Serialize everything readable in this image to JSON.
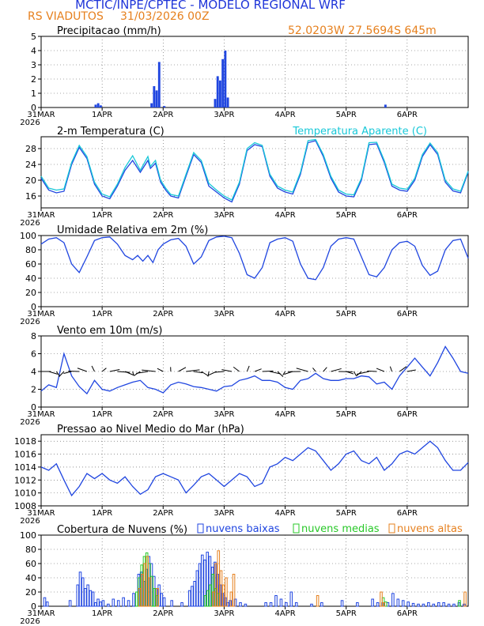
{
  "header": {
    "title": "MCTIC/INPE/CPTEC - MODELO REGIONAL WRF",
    "location": "RS VIADUTOS",
    "run": "31/03/2026 00Z",
    "coords": "52.0203W 27.5694S 645m",
    "title_color": "#1f35d9",
    "accent_color": "#e6801e"
  },
  "x_axis": {
    "ticks": [
      "31MAR",
      "1APR",
      "2APR",
      "3APR",
      "4APR",
      "5APR",
      "6APR"
    ],
    "year": "2026",
    "hours_total": 168
  },
  "chart_data": [
    {
      "type": "bar",
      "title": "Precipitacao (mm/h)",
      "ylim": [
        0,
        5
      ],
      "yticks": [
        "0",
        "1",
        "2",
        "3",
        "4",
        "5"
      ],
      "color": "#2046e0",
      "hours": [
        21,
        22,
        23,
        43,
        44,
        45,
        46,
        48,
        68,
        69,
        70,
        71,
        72,
        73,
        135
      ],
      "values": [
        0.2,
        0.3,
        0.15,
        0.3,
        1.5,
        1.2,
        3.2,
        0.1,
        0.6,
        2.2,
        1.9,
        3.4,
        4.0,
        0.7,
        0.2
      ]
    },
    {
      "type": "line",
      "title": "2-m Temperatura (C)",
      "title2": "Temperatura Aparente (C)",
      "ylim": [
        13,
        31
      ],
      "yticks": [
        "16",
        "20",
        "24",
        "28"
      ],
      "ytick_values": [
        16,
        20,
        24,
        28
      ],
      "series": [
        {
          "name": "Temperatura",
          "color": "#2046e0",
          "hours": [
            0,
            3,
            6,
            9,
            12,
            15,
            18,
            21,
            24,
            27,
            30,
            33,
            36,
            39,
            42,
            43,
            45,
            47,
            49,
            51,
            54,
            57,
            60,
            63,
            66,
            69,
            72,
            75,
            78,
            81,
            84,
            87,
            90,
            93,
            96,
            99,
            102,
            105,
            108,
            111,
            114,
            117,
            120,
            123,
            126,
            129,
            132,
            135,
            138,
            141,
            144,
            147,
            150,
            153,
            156,
            159,
            162,
            165,
            168
          ],
          "values": [
            20.5,
            17.5,
            16.8,
            17.2,
            24.0,
            28.3,
            25.5,
            19.0,
            16.0,
            15.3,
            18.5,
            22.5,
            25.0,
            22.0,
            25.0,
            23.0,
            24.3,
            19.5,
            17.5,
            16.0,
            15.5,
            21.0,
            26.5,
            24.5,
            18.5,
            17.0,
            15.5,
            14.5,
            19.0,
            27.5,
            29.0,
            28.5,
            21.0,
            18.0,
            17.0,
            16.5,
            21.5,
            29.5,
            30.0,
            26.0,
            20.5,
            17.0,
            16.0,
            15.8,
            20.0,
            29.0,
            29.2,
            24.5,
            18.5,
            17.5,
            17.2,
            20.0,
            26.0,
            29.0,
            26.5,
            19.5,
            17.3,
            16.8,
            22.0
          ]
        },
        {
          "name": "Temperatura Aparente",
          "color": "#18c8d8",
          "hours": [
            0,
            3,
            6,
            9,
            12,
            15,
            18,
            21,
            24,
            27,
            30,
            33,
            36,
            39,
            42,
            43,
            45,
            47,
            49,
            51,
            54,
            57,
            60,
            63,
            66,
            69,
            72,
            75,
            78,
            81,
            84,
            87,
            90,
            93,
            96,
            99,
            102,
            105,
            108,
            111,
            114,
            117,
            120,
            123,
            126,
            129,
            132,
            135,
            138,
            141,
            144,
            147,
            150,
            153,
            156,
            159,
            162,
            165,
            168
          ],
          "values": [
            21.0,
            18.0,
            17.5,
            17.8,
            24.5,
            28.8,
            26.0,
            19.5,
            16.5,
            15.8,
            19.0,
            23.2,
            26.2,
            22.5,
            26.0,
            23.5,
            25.0,
            20.0,
            18.0,
            16.4,
            16.0,
            21.5,
            27.0,
            25.0,
            19.2,
            17.5,
            16.0,
            15.0,
            19.5,
            28.0,
            29.5,
            28.8,
            21.5,
            18.5,
            17.5,
            17.0,
            22.0,
            30.0,
            30.3,
            26.5,
            21.0,
            17.5,
            16.5,
            16.3,
            20.5,
            29.5,
            29.6,
            25.0,
            19.0,
            18.0,
            17.7,
            20.5,
            26.5,
            29.4,
            27.0,
            20.0,
            17.8,
            17.2,
            22.3
          ]
        }
      ]
    },
    {
      "type": "line",
      "title": "Umidade Relativa em 2m (%)",
      "ylim": [
        0,
        100
      ],
      "yticks": [
        "0",
        "20",
        "40",
        "60",
        "80",
        "100"
      ],
      "ytick_values": [
        0,
        20,
        40,
        60,
        80,
        100
      ],
      "series": [
        {
          "name": "Umidade Relativa",
          "color": "#2046e0",
          "hours": [
            0,
            3,
            6,
            9,
            12,
            15,
            18,
            21,
            24,
            27,
            30,
            33,
            36,
            38,
            40,
            42,
            44,
            46,
            48,
            51,
            54,
            57,
            60,
            63,
            66,
            69,
            72,
            75,
            78,
            81,
            84,
            87,
            90,
            93,
            96,
            99,
            102,
            105,
            108,
            111,
            114,
            117,
            120,
            123,
            126,
            129,
            132,
            135,
            138,
            141,
            144,
            147,
            150,
            153,
            156,
            159,
            162,
            165,
            168
          ],
          "values": [
            88,
            95,
            97,
            90,
            60,
            48,
            70,
            93,
            97,
            98,
            88,
            72,
            66,
            72,
            64,
            72,
            62,
            80,
            88,
            94,
            96,
            85,
            60,
            70,
            93,
            98,
            99,
            97,
            75,
            45,
            40,
            55,
            90,
            95,
            97,
            92,
            60,
            40,
            38,
            55,
            85,
            95,
            97,
            95,
            70,
            45,
            42,
            55,
            80,
            90,
            92,
            85,
            58,
            44,
            50,
            80,
            93,
            95,
            68
          ]
        }
      ]
    },
    {
      "type": "line",
      "title": "Vento em 10m (m/s)",
      "ylim": [
        0,
        8
      ],
      "yticks": [
        "0",
        "2",
        "4",
        "6",
        "8"
      ],
      "ytick_values": [
        0,
        2,
        4,
        6,
        8
      ],
      "arrow_color": "#000000",
      "arrow_hours": [
        0,
        3,
        6,
        9,
        12,
        15,
        18,
        21,
        24,
        27,
        30,
        33,
        36,
        39,
        42,
        45,
        48,
        51,
        54,
        57,
        60,
        63,
        66,
        69,
        72,
        75,
        78,
        81,
        84,
        87,
        90,
        93,
        96,
        99,
        102,
        105,
        108,
        111,
        114,
        117,
        120,
        123,
        126,
        129,
        132,
        135,
        138,
        141,
        144
      ],
      "series": [
        {
          "name": "Vento",
          "color": "#2046e0",
          "hours": [
            0,
            3,
            6,
            9,
            12,
            15,
            18,
            21,
            24,
            27,
            30,
            33,
            36,
            39,
            42,
            45,
            48,
            51,
            54,
            57,
            60,
            63,
            66,
            69,
            72,
            75,
            78,
            81,
            84,
            87,
            90,
            93,
            96,
            99,
            102,
            105,
            108,
            111,
            114,
            117,
            120,
            123,
            126,
            129,
            132,
            135,
            138,
            141,
            144,
            147,
            150,
            153,
            156,
            159,
            162,
            165,
            168
          ],
          "values": [
            1.8,
            2.5,
            2.2,
            6.0,
            3.5,
            2.3,
            1.5,
            3.0,
            2.0,
            1.8,
            2.2,
            2.5,
            2.8,
            3.0,
            2.2,
            2.0,
            1.6,
            2.5,
            2.8,
            2.6,
            2.3,
            2.2,
            2.0,
            1.8,
            2.3,
            2.4,
            3.0,
            3.2,
            3.5,
            3.0,
            3.0,
            2.8,
            2.2,
            2.0,
            3.0,
            3.2,
            3.8,
            3.2,
            3.0,
            3.0,
            3.2,
            3.2,
            3.5,
            3.4,
            2.6,
            2.8,
            2.0,
            3.5,
            4.5,
            5.5,
            4.5,
            3.5,
            5.0,
            6.8,
            5.5,
            4.0,
            3.8
          ]
        }
      ]
    },
    {
      "type": "line",
      "title": "Pressao ao Nivel Medio do Mar (hPa)",
      "ylim": [
        1008,
        1019
      ],
      "yticks": [
        "1008",
        "1010",
        "1012",
        "1014",
        "1016",
        "1018"
      ],
      "ytick_values": [
        1008,
        1010,
        1012,
        1014,
        1016,
        1018
      ],
      "series": [
        {
          "name": "Pressao",
          "color": "#2046e0",
          "hours": [
            0,
            3,
            6,
            9,
            12,
            15,
            18,
            21,
            24,
            27,
            30,
            33,
            36,
            39,
            42,
            45,
            48,
            51,
            54,
            57,
            60,
            63,
            66,
            69,
            72,
            75,
            78,
            81,
            84,
            87,
            90,
            93,
            96,
            99,
            102,
            105,
            108,
            111,
            114,
            117,
            120,
            123,
            126,
            129,
            132,
            135,
            138,
            141,
            144,
            147,
            150,
            153,
            156,
            159,
            162,
            165,
            168
          ],
          "values": [
            1014.0,
            1013.5,
            1014.5,
            1012.0,
            1009.6,
            1011.0,
            1013.0,
            1012.2,
            1013.0,
            1012.0,
            1011.5,
            1012.5,
            1011.0,
            1009.8,
            1010.5,
            1012.5,
            1013.0,
            1012.5,
            1012.0,
            1010.0,
            1011.2,
            1012.5,
            1013.0,
            1012.0,
            1011.0,
            1012.0,
            1013.0,
            1012.5,
            1011.0,
            1011.5,
            1014.0,
            1014.5,
            1015.5,
            1015.0,
            1016.0,
            1017.0,
            1016.5,
            1015.0,
            1013.5,
            1014.5,
            1016.0,
            1016.5,
            1015.0,
            1014.5,
            1015.5,
            1013.5,
            1014.5,
            1016.0,
            1016.5,
            1016.0,
            1017.0,
            1018.0,
            1017.0,
            1015.0,
            1013.5,
            1013.5,
            1014.7
          ]
        }
      ]
    },
    {
      "type": "bar",
      "title": "Cobertura de Nuvens (%)",
      "ylim": [
        0,
        100
      ],
      "yticks": [
        "0",
        "20",
        "40",
        "60",
        "80",
        "100"
      ],
      "ytick_values": [
        0,
        20,
        40,
        60,
        80,
        100
      ],
      "series": [
        {
          "name": "nuvens baixas",
          "color": "#2046e0",
          "hours": [
            1,
            2,
            11,
            14,
            15,
            16,
            17,
            18,
            19,
            20,
            21,
            22,
            23,
            24,
            26,
            28,
            30,
            32,
            34,
            36,
            38,
            39,
            40,
            41,
            42,
            43,
            44,
            45,
            46,
            47,
            48,
            51,
            55,
            58,
            59,
            60,
            61,
            62,
            63,
            64,
            65,
            66,
            67,
            68,
            69,
            70,
            71,
            72,
            73,
            74,
            76,
            78,
            80,
            88,
            90,
            92,
            94,
            96,
            98,
            100,
            106,
            110,
            118,
            124,
            130,
            132,
            134,
            136,
            138,
            140,
            142,
            144,
            146,
            148,
            150,
            152,
            154,
            156,
            158,
            160,
            162,
            164,
            166
          ],
          "values": [
            12,
            6,
            8,
            30,
            48,
            40,
            25,
            30,
            22,
            20,
            5,
            10,
            6,
            8,
            3,
            10,
            8,
            12,
            8,
            18,
            45,
            48,
            35,
            52,
            70,
            60,
            42,
            25,
            30,
            18,
            12,
            8,
            5,
            22,
            28,
            35,
            50,
            60,
            72,
            65,
            76,
            70,
            55,
            62,
            45,
            30,
            18,
            12,
            5,
            8,
            10,
            5,
            3,
            5,
            5,
            15,
            10,
            5,
            20,
            5,
            3,
            5,
            8,
            5,
            10,
            5,
            5,
            5,
            18,
            10,
            8,
            6,
            4,
            3,
            3,
            5,
            3,
            5,
            5,
            3,
            3,
            5,
            3
          ]
        },
        {
          "name": "nuvens medias",
          "color": "#28c828",
          "hours": [
            37,
            38,
            39,
            40,
            41,
            42,
            43,
            44,
            45,
            64,
            65,
            66,
            67,
            68,
            69,
            134,
            135,
            164
          ],
          "values": [
            20,
            40,
            58,
            70,
            75,
            60,
            42,
            25,
            15,
            15,
            22,
            30,
            45,
            25,
            18,
            12,
            6,
            8
          ],
          "offset": 1
        },
        {
          "name": "nuvens altas",
          "color": "#e6801e",
          "hours": [
            38,
            39,
            40,
            41,
            42,
            45,
            67,
            68,
            69,
            70,
            71,
            72,
            74,
            75,
            108,
            133,
            134,
            166
          ],
          "values": [
            25,
            45,
            60,
            70,
            40,
            25,
            20,
            60,
            78,
            50,
            30,
            40,
            20,
            45,
            15,
            20,
            5,
            20
          ],
          "offset": 2
        }
      ]
    }
  ]
}
